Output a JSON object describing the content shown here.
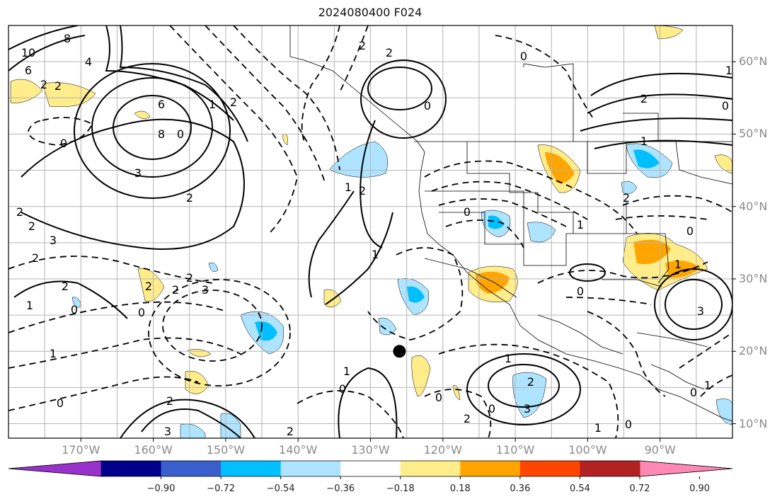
{
  "title": "2024080400 F024",
  "colors": {
    "gridline": "#b4b4b4",
    "contour": "#000000",
    "frame": "#000000",
    "axis_label": "#8a8a8a",
    "state_border": "#000000"
  },
  "map": {
    "projection": "equirectangular",
    "lon_range": [
      -180,
      -80
    ],
    "lat_range": [
      8,
      65
    ],
    "graticule_spacing_deg": 5,
    "station_marker": {
      "lon": -126,
      "lat": 20
    }
  },
  "lat_labels": [
    "60°N",
    "50°N",
    "40°N",
    "30°N",
    "20°N",
    "10°N"
  ],
  "lon_labels": [
    "170°W",
    "160°W",
    "150°W",
    "140°W",
    "130°W",
    "120°W",
    "110°W",
    "100°W",
    "90°W"
  ],
  "colorbar": {
    "colors": [
      "#9932cc",
      "#00008b",
      "#3a5fcd",
      "#00bfff",
      "#aee4ff",
      "#ffffff",
      "#ffec8b",
      "#ffa500",
      "#ff4500",
      "#b22222",
      "#ff89b4"
    ],
    "extend": "both",
    "tick_labels": [
      "−0.90",
      "−0.72",
      "−0.54",
      "−0.36",
      "−0.18",
      "0.18",
      "0.36",
      "0.54",
      "0.72",
      "0.90"
    ]
  },
  "shading": {
    "blue_fill": [
      "#aee4ff",
      "#00bfff"
    ],
    "orange_fill": [
      "#ffec8b",
      "#ffa500"
    ]
  },
  "contour_labels": [
    "10",
    "8",
    "6",
    "4",
    "2",
    "6",
    "8",
    "3",
    "2",
    "2",
    "0",
    "2",
    "2",
    "3",
    "2",
    "2",
    "1",
    "0",
    "2",
    "3",
    "0",
    "2",
    "2",
    "1",
    "0",
    "2",
    "3",
    "2",
    "1",
    "0",
    "1",
    "1",
    "2",
    "2",
    "1",
    "0",
    "2",
    "2",
    "0",
    "0",
    "0",
    "1",
    "1",
    "2",
    "3",
    "0",
    "0",
    "2",
    "0",
    "1",
    "0",
    "1",
    "0",
    "1",
    "2",
    "3",
    "2"
  ],
  "extra_contour_labels": [
    "1",
    "1",
    "0",
    "0"
  ]
}
